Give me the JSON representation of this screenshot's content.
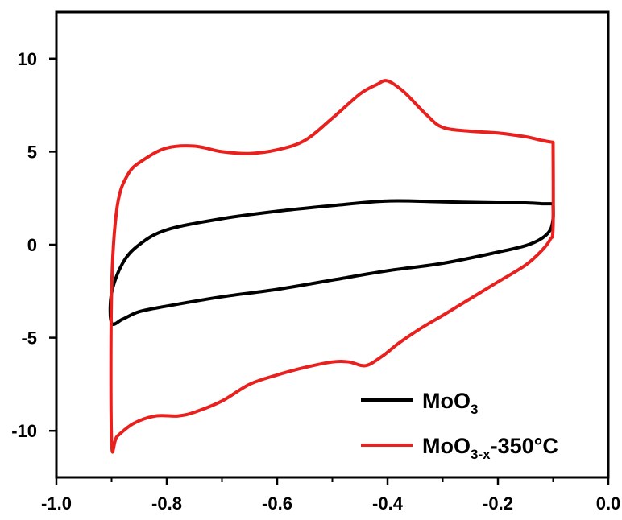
{
  "chart_data": {
    "type": "line",
    "title": "",
    "xlabel": "",
    "ylabel": "",
    "xlim": [
      -1.0,
      0.0
    ],
    "ylim": [
      -12.5,
      12.5
    ],
    "x_ticks": [
      -1.0,
      -0.8,
      -0.6,
      -0.4,
      -0.2,
      0.0
    ],
    "x_tick_labels": [
      "-1.0",
      "-0.8",
      "-0.6",
      "-0.4",
      "-0.2",
      "0.0"
    ],
    "y_ticks": [
      -10,
      -5,
      0,
      5,
      10
    ],
    "y_tick_labels": [
      "-10",
      "-5",
      "0",
      "5",
      "10"
    ],
    "grid": false,
    "legend_position": "bottom-right",
    "series": [
      {
        "name_main": "MoO",
        "name_sub": "3",
        "name_suffix": "",
        "color": "#000000",
        "x": [
          -0.1,
          -0.12,
          -0.15,
          -0.2,
          -0.3,
          -0.4,
          -0.5,
          -0.6,
          -0.7,
          -0.8,
          -0.85,
          -0.88,
          -0.9,
          -0.9,
          -0.88,
          -0.85,
          -0.8,
          -0.7,
          -0.6,
          -0.5,
          -0.4,
          -0.3,
          -0.2,
          -0.15,
          -0.12,
          -0.105,
          -0.1,
          -0.1
        ],
        "y": [
          2.2,
          2.2,
          2.25,
          2.25,
          2.3,
          2.35,
          2.1,
          1.8,
          1.4,
          0.8,
          0.0,
          -1.0,
          -2.6,
          -4.2,
          -4.0,
          -3.6,
          -3.3,
          -2.8,
          -2.4,
          -1.9,
          -1.4,
          -1.0,
          -0.4,
          -0.05,
          0.35,
          0.8,
          1.4,
          2.2
        ]
      },
      {
        "name_main": "MoO",
        "name_sub": "3-x",
        "name_suffix": "-350°C",
        "color": "#e8201e",
        "x": [
          -0.1,
          -0.12,
          -0.15,
          -0.2,
          -0.25,
          -0.3,
          -0.33,
          -0.37,
          -0.4,
          -0.42,
          -0.45,
          -0.5,
          -0.55,
          -0.6,
          -0.65,
          -0.7,
          -0.75,
          -0.8,
          -0.84,
          -0.87,
          -0.89,
          -0.9,
          -0.9,
          -0.89,
          -0.86,
          -0.82,
          -0.78,
          -0.75,
          -0.7,
          -0.65,
          -0.6,
          -0.55,
          -0.5,
          -0.47,
          -0.44,
          -0.41,
          -0.38,
          -0.34,
          -0.3,
          -0.25,
          -0.2,
          -0.15,
          -0.12,
          -0.105,
          -0.1,
          -0.1
        ],
        "y": [
          5.5,
          5.6,
          5.8,
          6.0,
          6.1,
          6.3,
          7.0,
          8.2,
          8.8,
          8.6,
          8.1,
          6.8,
          5.6,
          5.1,
          4.9,
          5.0,
          5.3,
          5.2,
          4.6,
          3.8,
          2.0,
          -2.5,
          -10.6,
          -10.3,
          -9.6,
          -9.2,
          -9.2,
          -9.0,
          -8.4,
          -7.5,
          -7.0,
          -6.6,
          -6.3,
          -6.3,
          -6.5,
          -6.0,
          -5.3,
          -4.5,
          -3.8,
          -2.9,
          -2.0,
          -1.1,
          -0.3,
          0.3,
          1.0,
          5.5
        ]
      }
    ]
  }
}
